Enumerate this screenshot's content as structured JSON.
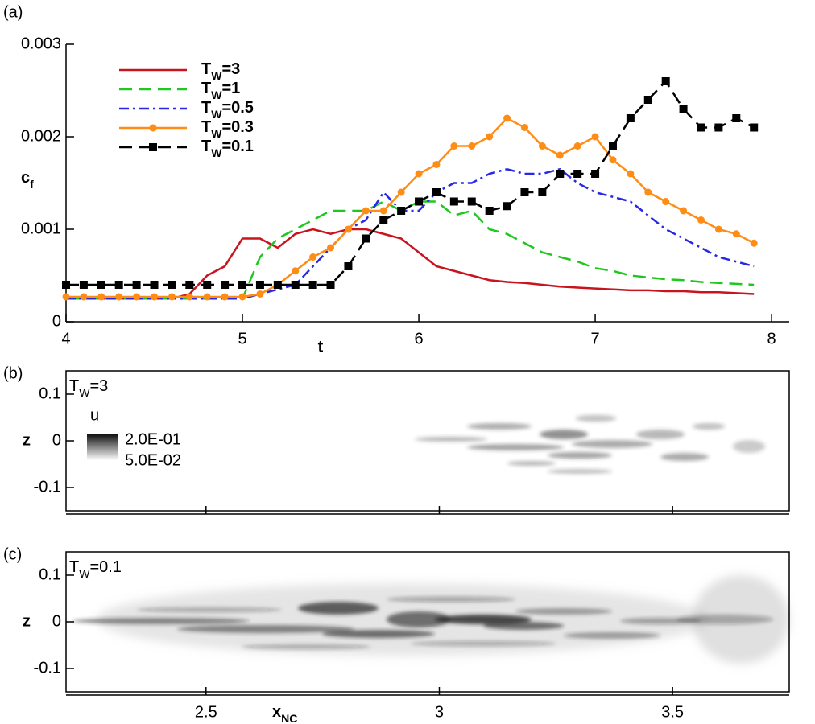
{
  "chart_data": [
    {
      "type": "line",
      "panel_label": "(a)",
      "x_label": "t",
      "y_label": "cf",
      "x": [
        4.0,
        4.1,
        4.2,
        4.3,
        4.4,
        4.5,
        4.6,
        4.7,
        4.8,
        4.9,
        5.0,
        5.1,
        5.2,
        5.3,
        5.4,
        5.5,
        5.6,
        5.7,
        5.8,
        5.9,
        6.0,
        6.1,
        6.2,
        6.3,
        6.4,
        6.5,
        6.6,
        6.7,
        6.8,
        6.9,
        7.0,
        7.1,
        7.2,
        7.3,
        7.4,
        7.5,
        7.6,
        7.7,
        7.8,
        7.9
      ],
      "xlim": [
        4,
        8.1
      ],
      "xticks": [
        4,
        5,
        6,
        7,
        8
      ],
      "ylim": [
        0,
        0.003
      ],
      "yticks": [
        0,
        0.001,
        0.002,
        0.003
      ],
      "series": [
        {
          "name": "TW=3",
          "color": "#c8141e",
          "dash": "none",
          "marker": "none",
          "values": [
            0.00025,
            0.00025,
            0.00025,
            0.00025,
            0.00025,
            0.00025,
            0.00025,
            0.0003,
            0.0005,
            0.0006,
            0.0009,
            0.0009,
            0.0008,
            0.00095,
            0.001,
            0.00095,
            0.001,
            0.001,
            0.00095,
            0.0009,
            0.00075,
            0.0006,
            0.00055,
            0.0005,
            0.00045,
            0.00043,
            0.00042,
            0.0004,
            0.00038,
            0.00037,
            0.00036,
            0.00035,
            0.00034,
            0.00034,
            0.00033,
            0.00033,
            0.00032,
            0.00032,
            0.00031,
            0.0003
          ]
        },
        {
          "name": "TW=1",
          "color": "#1ec81e",
          "dash": "dashed",
          "marker": "none",
          "values": [
            0.00025,
            0.00025,
            0.00025,
            0.00025,
            0.00025,
            0.00025,
            0.00025,
            0.00025,
            0.00025,
            0.00025,
            0.00025,
            0.0007,
            0.0009,
            0.001,
            0.0011,
            0.0012,
            0.0012,
            0.0012,
            0.0013,
            0.0012,
            0.0013,
            0.0013,
            0.00115,
            0.0012,
            0.001,
            0.00095,
            0.00085,
            0.00075,
            0.0007,
            0.00065,
            0.00058,
            0.00055,
            0.0005,
            0.00048,
            0.00046,
            0.00045,
            0.00043,
            0.00042,
            0.00041,
            0.0004
          ]
        },
        {
          "name": "TW=0.5",
          "color": "#2828e6",
          "dash": "dashdot",
          "marker": "none",
          "values": [
            0.00025,
            0.00025,
            0.00025,
            0.00025,
            0.00025,
            0.00025,
            0.00025,
            0.00025,
            0.00025,
            0.00025,
            0.00025,
            0.0003,
            0.00035,
            0.0004,
            0.0006,
            0.0008,
            0.001,
            0.0011,
            0.0014,
            0.0012,
            0.0012,
            0.0014,
            0.0015,
            0.0015,
            0.0016,
            0.00165,
            0.0016,
            0.0016,
            0.00165,
            0.0015,
            0.0014,
            0.00135,
            0.0013,
            0.00115,
            0.001,
            0.0009,
            0.0008,
            0.0007,
            0.00065,
            0.0006
          ]
        },
        {
          "name": "TW=0.3",
          "color": "#ff8c14",
          "dash": "none",
          "marker": "circle",
          "values": [
            0.00027,
            0.00027,
            0.00027,
            0.00027,
            0.00027,
            0.00027,
            0.00027,
            0.00027,
            0.00027,
            0.00027,
            0.00027,
            0.0003,
            0.0004,
            0.00055,
            0.0007,
            0.0008,
            0.001,
            0.0012,
            0.0012,
            0.0014,
            0.0016,
            0.0017,
            0.0019,
            0.0019,
            0.002,
            0.0022,
            0.0021,
            0.0019,
            0.0018,
            0.0019,
            0.002,
            0.00175,
            0.0016,
            0.0014,
            0.0013,
            0.0012,
            0.0011,
            0.001,
            0.00095,
            0.00085
          ]
        },
        {
          "name": "TW=0.1",
          "color": "#000000",
          "dash": "dashed",
          "marker": "square",
          "values": [
            0.0004,
            0.0004,
            0.0004,
            0.0004,
            0.0004,
            0.0004,
            0.0004,
            0.0004,
            0.0004,
            0.0004,
            0.0004,
            0.0004,
            0.0004,
            0.0004,
            0.0004,
            0.0004,
            0.0006,
            0.0009,
            0.0011,
            0.0012,
            0.0013,
            0.0014,
            0.0013,
            0.0013,
            0.0012,
            0.00125,
            0.0014,
            0.0014,
            0.0016,
            0.0016,
            0.0016,
            0.0019,
            0.0022,
            0.0024,
            0.0026,
            0.0023,
            0.0021,
            0.0021,
            0.0022,
            0.0021
          ]
        }
      ]
    },
    {
      "type": "contour",
      "panel_label": "(b)",
      "annotation": "TW=3",
      "y_label": "z",
      "xlim": [
        2.2,
        3.75
      ],
      "xticks": [
        2.5,
        3,
        3.5
      ],
      "ylim": [
        -0.15,
        0.15
      ],
      "yticks": [
        0.1,
        0,
        -0.1
      ],
      "colorbar": {
        "title": "u",
        "ticks": [
          {
            "value": 0.2,
            "label": "2.0E-01"
          },
          {
            "value": 0.05,
            "label": "5.0E-02"
          }
        ]
      }
    },
    {
      "type": "contour",
      "panel_label": "(c)",
      "annotation": "TW=0.1",
      "y_label": "z",
      "x_label": "xNC",
      "xlim": [
        2.2,
        3.75
      ],
      "xticks": [
        2.5,
        3,
        3.5
      ],
      "ylim": [
        -0.15,
        0.15
      ],
      "yticks": [
        0.1,
        0,
        -0.1
      ]
    }
  ]
}
